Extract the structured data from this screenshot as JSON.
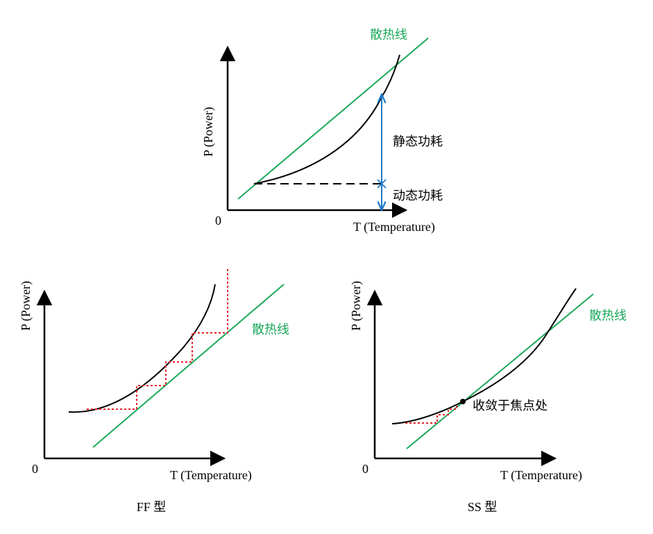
{
  "colors": {
    "axis": "#000000",
    "curve": "#000000",
    "heat_line": "#19a85a",
    "arrow": "#1f78c8",
    "steps": "#e8202a"
  },
  "top": {
    "y_label": "P (Power)",
    "x_label": "T (Temperature)",
    "origin": "0",
    "heat_line_label": "散热线",
    "static_label": "静态功耗",
    "dynamic_label": "动态功耗"
  },
  "ff": {
    "y_label": "P (Power)",
    "x_label": "T (Temperature)",
    "origin": "0",
    "heat_line_label": "散热线",
    "caption": "FF 型"
  },
  "ss": {
    "y_label": "P (Power)",
    "x_label": "T (Temperature)",
    "origin": "0",
    "heat_line_label": "散热线",
    "focus_label": "收敛于焦点处",
    "caption": "SS 型"
  }
}
